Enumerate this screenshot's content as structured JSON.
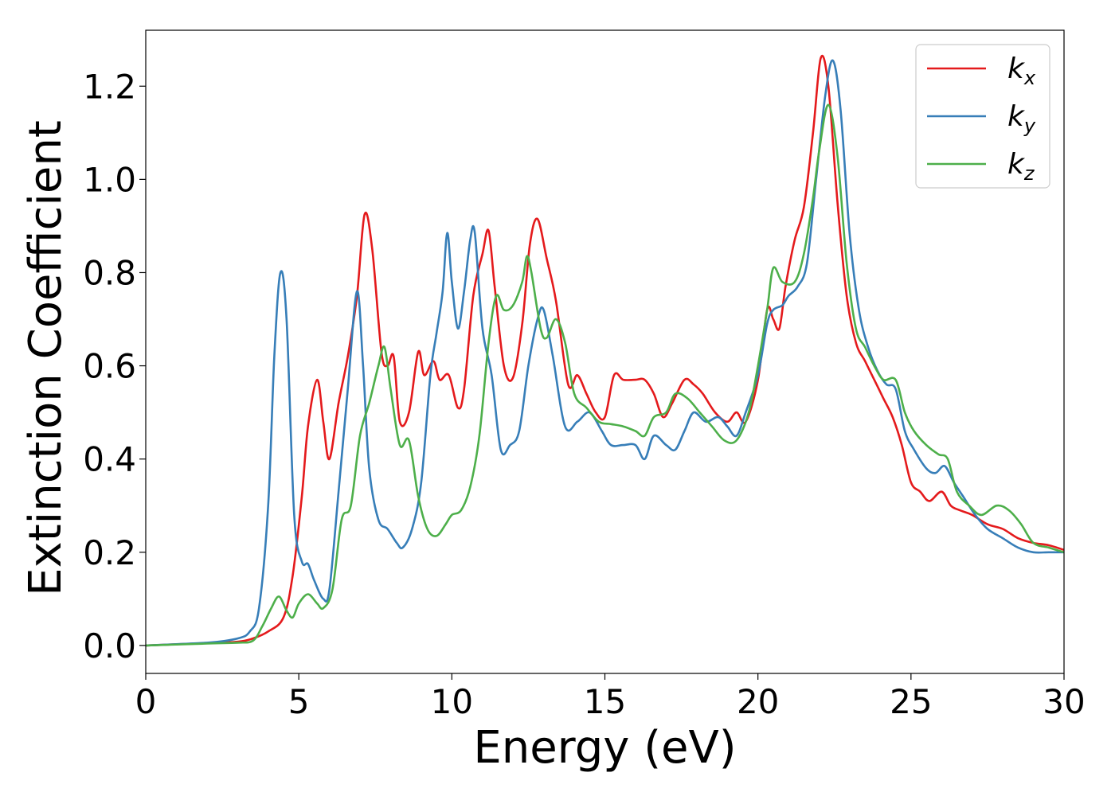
{
  "chart_data": {
    "type": "line",
    "xlabel": "Energy (eV)",
    "ylabel": "Extinction Coefficient",
    "xlim": [
      0,
      30
    ],
    "ylim": [
      -0.06,
      1.32
    ],
    "xticks": [
      0,
      5,
      10,
      15,
      20,
      25,
      30
    ],
    "xtick_labels": [
      "0",
      "5",
      "10",
      "15",
      "20",
      "25",
      "30"
    ],
    "yticks": [
      0.0,
      0.2,
      0.4,
      0.6,
      0.8,
      1.0,
      1.2
    ],
    "ytick_labels": [
      "0.0",
      "0.2",
      "0.4",
      "0.6",
      "0.8",
      "1.0",
      "1.2"
    ],
    "grid": false,
    "legend_position": "top-right",
    "series": [
      {
        "name": "k_x",
        "legend_base": "k",
        "legend_sub": "x",
        "color": "#e41a1c",
        "x": [
          0,
          2,
          3,
          3.5,
          4,
          4.5,
          4.8,
          5.1,
          5.3,
          5.6,
          5.8,
          6.0,
          6.3,
          6.6,
          6.9,
          7.15,
          7.4,
          7.7,
          7.9,
          8.1,
          8.3,
          8.6,
          8.9,
          9.1,
          9.4,
          9.6,
          9.9,
          10.2,
          10.4,
          10.7,
          11.0,
          11.2,
          11.4,
          11.7,
          12.0,
          12.3,
          12.55,
          12.8,
          13.1,
          13.4,
          13.8,
          14.1,
          14.4,
          14.7,
          15.0,
          15.3,
          15.6,
          16.0,
          16.3,
          16.6,
          16.9,
          17.2,
          17.6,
          17.9,
          18.2,
          18.6,
          19.0,
          19.3,
          19.6,
          20.0,
          20.3,
          20.5,
          20.7,
          20.9,
          21.2,
          21.5,
          21.8,
          22.05,
          22.3,
          22.6,
          22.9,
          23.2,
          23.5,
          23.8,
          24.1,
          24.4,
          24.7,
          25.0,
          25.3,
          25.6,
          26.0,
          26.3,
          26.6,
          27.0,
          27.5,
          28.0,
          28.5,
          29.0,
          29.5,
          30.0
        ],
        "values": [
          0.0,
          0.005,
          0.008,
          0.015,
          0.03,
          0.06,
          0.15,
          0.32,
          0.47,
          0.57,
          0.48,
          0.4,
          0.52,
          0.62,
          0.75,
          0.925,
          0.85,
          0.63,
          0.6,
          0.62,
          0.48,
          0.5,
          0.63,
          0.58,
          0.61,
          0.57,
          0.58,
          0.51,
          0.55,
          0.75,
          0.84,
          0.89,
          0.77,
          0.6,
          0.575,
          0.69,
          0.86,
          0.915,
          0.83,
          0.74,
          0.56,
          0.58,
          0.54,
          0.5,
          0.49,
          0.58,
          0.57,
          0.57,
          0.57,
          0.54,
          0.49,
          0.52,
          0.57,
          0.56,
          0.54,
          0.5,
          0.48,
          0.5,
          0.48,
          0.57,
          0.72,
          0.7,
          0.68,
          0.77,
          0.87,
          0.94,
          1.1,
          1.26,
          1.2,
          0.95,
          0.75,
          0.65,
          0.61,
          0.57,
          0.53,
          0.49,
          0.43,
          0.35,
          0.33,
          0.31,
          0.33,
          0.3,
          0.29,
          0.28,
          0.26,
          0.25,
          0.23,
          0.22,
          0.215,
          0.205
        ]
      },
      {
        "name": "k_y",
        "legend_base": "k",
        "legend_sub": "y",
        "color": "#377eb8",
        "x": [
          0,
          2,
          3,
          3.4,
          3.7,
          4.0,
          4.2,
          4.4,
          4.6,
          4.85,
          5.1,
          5.3,
          5.5,
          5.8,
          6.0,
          6.3,
          6.6,
          6.9,
          7.1,
          7.3,
          7.6,
          7.9,
          8.2,
          8.4,
          8.7,
          9.0,
          9.3,
          9.5,
          9.7,
          9.85,
          10.0,
          10.2,
          10.4,
          10.6,
          10.75,
          11.0,
          11.3,
          11.6,
          11.9,
          12.2,
          12.5,
          12.8,
          13.0,
          13.3,
          13.7,
          14.1,
          14.5,
          14.9,
          15.2,
          15.6,
          16.0,
          16.3,
          16.6,
          17.0,
          17.3,
          17.6,
          17.9,
          18.3,
          18.7,
          19.0,
          19.3,
          19.6,
          20.0,
          20.3,
          20.5,
          20.8,
          21.0,
          21.3,
          21.6,
          21.9,
          22.2,
          22.45,
          22.7,
          23.0,
          23.3,
          23.6,
          23.9,
          24.2,
          24.5,
          24.8,
          25.1,
          25.5,
          25.8,
          26.1,
          26.4,
          26.7,
          27.1,
          27.5,
          28.0,
          28.5,
          29.0,
          29.5,
          30.0
        ],
        "values": [
          0.0,
          0.006,
          0.015,
          0.03,
          0.08,
          0.3,
          0.62,
          0.8,
          0.7,
          0.28,
          0.18,
          0.175,
          0.14,
          0.1,
          0.12,
          0.33,
          0.55,
          0.76,
          0.6,
          0.38,
          0.27,
          0.25,
          0.22,
          0.21,
          0.25,
          0.35,
          0.58,
          0.67,
          0.76,
          0.885,
          0.78,
          0.68,
          0.76,
          0.87,
          0.885,
          0.68,
          0.58,
          0.42,
          0.43,
          0.46,
          0.6,
          0.7,
          0.72,
          0.62,
          0.47,
          0.48,
          0.5,
          0.46,
          0.43,
          0.43,
          0.43,
          0.4,
          0.45,
          0.43,
          0.42,
          0.46,
          0.5,
          0.48,
          0.49,
          0.47,
          0.45,
          0.5,
          0.58,
          0.69,
          0.72,
          0.73,
          0.75,
          0.77,
          0.82,
          1.0,
          1.18,
          1.255,
          1.15,
          0.88,
          0.72,
          0.64,
          0.59,
          0.56,
          0.55,
          0.46,
          0.42,
          0.38,
          0.37,
          0.385,
          0.35,
          0.32,
          0.28,
          0.25,
          0.23,
          0.21,
          0.2,
          0.2,
          0.2
        ]
      },
      {
        "name": "k_z",
        "legend_base": "k",
        "legend_sub": "z",
        "color": "#4daf4a",
        "x": [
          0,
          2,
          3,
          3.5,
          3.8,
          4.1,
          4.35,
          4.6,
          4.8,
          5.0,
          5.3,
          5.6,
          5.8,
          6.1,
          6.4,
          6.7,
          7.0,
          7.3,
          7.6,
          7.8,
          8.0,
          8.3,
          8.6,
          8.9,
          9.2,
          9.5,
          9.8,
          10.0,
          10.3,
          10.6,
          10.9,
          11.2,
          11.45,
          11.7,
          12.0,
          12.3,
          12.45,
          12.6,
          12.9,
          13.1,
          13.4,
          13.7,
          14.0,
          14.4,
          14.8,
          15.2,
          15.6,
          16.0,
          16.3,
          16.6,
          17.0,
          17.3,
          17.7,
          18.1,
          18.5,
          18.9,
          19.3,
          19.7,
          20.0,
          20.3,
          20.5,
          20.8,
          21.2,
          21.5,
          21.8,
          22.0,
          22.3,
          22.6,
          22.9,
          23.2,
          23.5,
          23.8,
          24.1,
          24.5,
          24.8,
          25.1,
          25.5,
          25.9,
          26.2,
          26.5,
          26.9,
          27.3,
          27.8,
          28.2,
          28.6,
          29.0,
          29.5,
          30.0
        ],
        "values": [
          0.0,
          0.004,
          0.006,
          0.01,
          0.04,
          0.08,
          0.105,
          0.075,
          0.06,
          0.09,
          0.11,
          0.09,
          0.08,
          0.12,
          0.27,
          0.3,
          0.45,
          0.52,
          0.6,
          0.64,
          0.55,
          0.43,
          0.44,
          0.32,
          0.25,
          0.235,
          0.26,
          0.28,
          0.29,
          0.34,
          0.45,
          0.65,
          0.75,
          0.72,
          0.73,
          0.78,
          0.835,
          0.8,
          0.68,
          0.66,
          0.7,
          0.65,
          0.54,
          0.51,
          0.48,
          0.475,
          0.47,
          0.46,
          0.45,
          0.49,
          0.5,
          0.54,
          0.53,
          0.5,
          0.47,
          0.44,
          0.44,
          0.5,
          0.6,
          0.72,
          0.81,
          0.78,
          0.78,
          0.84,
          0.96,
          1.06,
          1.16,
          1.05,
          0.82,
          0.68,
          0.64,
          0.6,
          0.57,
          0.57,
          0.5,
          0.46,
          0.43,
          0.41,
          0.4,
          0.33,
          0.3,
          0.28,
          0.3,
          0.29,
          0.26,
          0.22,
          0.21,
          0.2
        ]
      }
    ]
  }
}
